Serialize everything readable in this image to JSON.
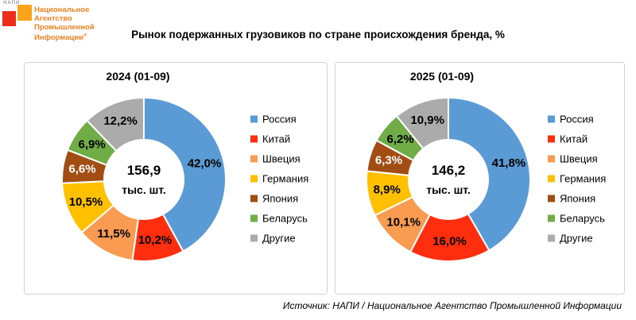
{
  "logo": {
    "brand_small": "НАПИ",
    "org_lines": [
      "Национальное",
      "Агентство",
      "Промышленной",
      "Информации"
    ],
    "registered_mark": "®",
    "colors": {
      "red_square": "#ee2e1d",
      "orange_square": "#faa41a",
      "text": "#f58220"
    }
  },
  "title": "Рынок подержанных грузовиков по стране происхождения бренда, %",
  "source": "Источник: НАПИ / Национальное Агентство Промышленной Информации",
  "chart_data": [
    {
      "type": "pie",
      "subtype": "donut",
      "title": "2024 (01-09)",
      "center_value": "156,9",
      "center_unit": "тыс. шт.",
      "categories": [
        "Россия",
        "Китай",
        "Швеция",
        "Германия",
        "Япония",
        "Беларусь",
        "Другие"
      ],
      "values": [
        42.0,
        10.2,
        11.5,
        10.5,
        6.6,
        6.9,
        12.2
      ],
      "labels": [
        "42,0%",
        "10,2%",
        "11,5%",
        "10,5%",
        "6,6%",
        "6,9%",
        "12,2%"
      ],
      "colors": [
        "#5b9bd5",
        "#ff2e0e",
        "#f99b51",
        "#ffc000",
        "#a24d13",
        "#70ad47",
        "#ababab"
      ],
      "label_text_colors": [
        "#000000",
        "#000000",
        "#000000",
        "#000000",
        "#ffffff",
        "#000000",
        "#000000"
      ],
      "legend_position": "right",
      "start_angle_deg": 0,
      "direction": "clockwise"
    },
    {
      "type": "pie",
      "subtype": "donut",
      "title": "2025 (01-09)",
      "center_value": "146,2",
      "center_unit": "тыс. шт.",
      "categories": [
        "Россия",
        "Китай",
        "Швеция",
        "Германия",
        "Япония",
        "Беларусь",
        "Другие"
      ],
      "values": [
        41.8,
        16.0,
        10.1,
        8.9,
        6.3,
        6.2,
        10.9
      ],
      "labels": [
        "41,8%",
        "16,0%",
        "10,1%",
        "8,9%",
        "6,3%",
        "6,2%",
        "10,9%"
      ],
      "colors": [
        "#5b9bd5",
        "#ff2e0e",
        "#f99b51",
        "#ffc000",
        "#a24d13",
        "#70ad47",
        "#ababab"
      ],
      "label_text_colors": [
        "#000000",
        "#000000",
        "#000000",
        "#000000",
        "#ffffff",
        "#000000",
        "#000000"
      ],
      "legend_position": "right",
      "start_angle_deg": 0,
      "direction": "clockwise"
    }
  ]
}
